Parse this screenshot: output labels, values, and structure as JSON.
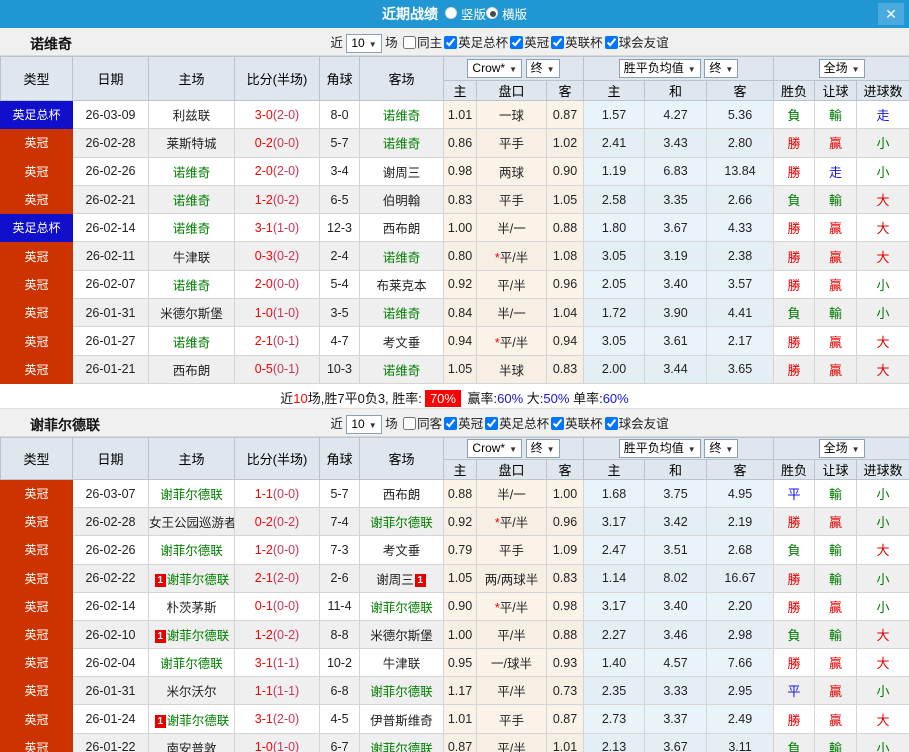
{
  "titlebar": {
    "title": "近期战绩",
    "close": "✕",
    "radios": [
      {
        "label": "竖版",
        "selected": false
      },
      {
        "label": "横版",
        "selected": true
      }
    ]
  },
  "header": {
    "type": "类型",
    "date": "日期",
    "home": "主场",
    "score": "比分(半场)",
    "corner": "角球",
    "away": "客场",
    "bookmaker": "Crow*",
    "final": "终",
    "wdl_avg": "胜平负均值",
    "full": "全场",
    "sub": [
      "主",
      "盘口",
      "客",
      "主",
      "和",
      "客",
      "胜负",
      "让球",
      "进球数"
    ]
  },
  "sections": [
    {
      "team": "诺维奇",
      "filter": {
        "near": "近",
        "count": "10",
        "games": "场",
        "same": "同主",
        "same_checked": false,
        "comps": [
          "英足总杯",
          "英冠",
          "英联杯",
          "球会友谊"
        ]
      },
      "rows": [
        {
          "type": "英足总杯",
          "cup": true,
          "date": "26-03-09",
          "home": "利兹联",
          "score": "3-0",
          "half": "(2-0)",
          "corner": "8-0",
          "away": "诺维奇",
          "away_self": true,
          "h": "1.01",
          "hc": "一球",
          "a": "0.87",
          "eu_h": "1.57",
          "eu_d": "4.27",
          "eu_a": "5.36",
          "res": "負",
          "res_c": "g",
          "let": "輸",
          "let_c": "g",
          "goal": "走",
          "goal_c": "b"
        },
        {
          "type": "英冠",
          "date": "26-02-28",
          "home": "莱斯特城",
          "score": "0-2",
          "half": "(0-0)",
          "corner": "5-7",
          "away": "诺维奇",
          "away_self": true,
          "h": "0.86",
          "hc": "平手",
          "a": "1.02",
          "eu_h": "2.41",
          "eu_d": "3.43",
          "eu_a": "2.80",
          "res": "勝",
          "res_c": "r",
          "let": "贏",
          "let_c": "r",
          "goal": "小",
          "goal_c": "g"
        },
        {
          "type": "英冠",
          "date": "26-02-26",
          "home": "诺维奇",
          "home_self": true,
          "score": "2-0",
          "half": "(2-0)",
          "corner": "3-4",
          "away": "谢周三",
          "h": "0.98",
          "hc": "两球",
          "a": "0.90",
          "eu_h": "1.19",
          "eu_d": "6.83",
          "eu_a": "13.84",
          "res": "勝",
          "res_c": "r",
          "let": "走",
          "let_c": "b",
          "goal": "小",
          "goal_c": "g"
        },
        {
          "type": "英冠",
          "date": "26-02-21",
          "home": "诺维奇",
          "home_self": true,
          "score": "1-2",
          "half": "(0-2)",
          "corner": "6-5",
          "away": "伯明翰",
          "h": "0.83",
          "hc": "平手",
          "a": "1.05",
          "eu_h": "2.58",
          "eu_d": "3.35",
          "eu_a": "2.66",
          "res": "負",
          "res_c": "g",
          "let": "輸",
          "let_c": "g",
          "goal": "大",
          "goal_c": "r"
        },
        {
          "type": "英足总杯",
          "cup": true,
          "date": "26-02-14",
          "home": "诺维奇",
          "home_self": true,
          "score": "3-1",
          "half": "(1-0)",
          "corner": "12-3",
          "away": "西布朗",
          "h": "1.00",
          "hc": "半/一",
          "a": "0.88",
          "eu_h": "1.80",
          "eu_d": "3.67",
          "eu_a": "4.33",
          "res": "勝",
          "res_c": "r",
          "let": "贏",
          "let_c": "r",
          "goal": "大",
          "goal_c": "r"
        },
        {
          "type": "英冠",
          "date": "26-02-11",
          "home": "牛津联",
          "score": "0-3",
          "half": "(0-2)",
          "corner": "2-4",
          "away": "诺维奇",
          "away_self": true,
          "h": "0.80",
          "hc": "*平/半",
          "a": "1.08",
          "eu_h": "3.05",
          "eu_d": "3.19",
          "eu_a": "2.38",
          "res": "勝",
          "res_c": "r",
          "let": "贏",
          "let_c": "r",
          "goal": "大",
          "goal_c": "r"
        },
        {
          "type": "英冠",
          "date": "26-02-07",
          "home": "诺维奇",
          "home_self": true,
          "score": "2-0",
          "half": "(0-0)",
          "corner": "5-4",
          "away": "布莱克本",
          "h": "0.92",
          "hc": "平/半",
          "a": "0.96",
          "eu_h": "2.05",
          "eu_d": "3.40",
          "eu_a": "3.57",
          "res": "勝",
          "res_c": "r",
          "let": "贏",
          "let_c": "r",
          "goal": "小",
          "goal_c": "g"
        },
        {
          "type": "英冠",
          "date": "26-01-31",
          "home": "米德尔斯堡",
          "score": "1-0",
          "half": "(1-0)",
          "corner": "3-5",
          "away": "诺维奇",
          "away_self": true,
          "h": "0.84",
          "hc": "半/一",
          "a": "1.04",
          "eu_h": "1.72",
          "eu_d": "3.90",
          "eu_a": "4.41",
          "res": "負",
          "res_c": "g",
          "let": "輸",
          "let_c": "g",
          "goal": "小",
          "goal_c": "g"
        },
        {
          "type": "英冠",
          "date": "26-01-27",
          "home": "诺维奇",
          "home_self": true,
          "score": "2-1",
          "half": "(0-1)",
          "corner": "4-7",
          "away": "考文垂",
          "h": "0.94",
          "hc": "*平/半",
          "a": "0.94",
          "eu_h": "3.05",
          "eu_d": "3.61",
          "eu_a": "2.17",
          "res": "勝",
          "res_c": "r",
          "let": "贏",
          "let_c": "r",
          "goal": "大",
          "goal_c": "r"
        },
        {
          "type": "英冠",
          "date": "26-01-21",
          "home": "西布朗",
          "score": "0-5",
          "half": "(0-1)",
          "corner": "10-3",
          "away": "诺维奇",
          "away_self": true,
          "h": "1.05",
          "hc": "半球",
          "a": "0.83",
          "eu_h": "2.00",
          "eu_d": "3.44",
          "eu_a": "3.65",
          "res": "勝",
          "res_c": "r",
          "let": "贏",
          "let_c": "r",
          "goal": "大",
          "goal_c": "r"
        }
      ],
      "summary": {
        "near": "近",
        "count": "10",
        "text": "场,胜7平0负3, 胜率:",
        "rate": "70%",
        "stats": [
          {
            "label": "赢率:",
            "value": "60%"
          },
          {
            "label": "大:",
            "value": "50%"
          },
          {
            "label": "单率:",
            "value": "60%"
          }
        ]
      }
    },
    {
      "team": "谢菲尔德联",
      "filter": {
        "near": "近",
        "count": "10",
        "games": "场",
        "same": "同客",
        "same_checked": false,
        "comps": [
          "英冠",
          "英足总杯",
          "英联杯",
          "球会友谊"
        ]
      },
      "rows": [
        {
          "type": "英冠",
          "date": "26-03-07",
          "home": "谢菲尔德联",
          "home_self": true,
          "score": "1-1",
          "half": "(0-0)",
          "corner": "5-7",
          "away": "西布朗",
          "h": "0.88",
          "hc": "半/一",
          "a": "1.00",
          "eu_h": "1.68",
          "eu_d": "3.75",
          "eu_a": "4.95",
          "res": "平",
          "res_c": "b",
          "let": "輸",
          "let_c": "g",
          "goal": "小",
          "goal_c": "g"
        },
        {
          "type": "英冠",
          "date": "26-02-28",
          "home": "女王公园巡游者",
          "score": "0-2",
          "half": "(0-2)",
          "corner": "7-4",
          "away": "谢菲尔德联",
          "away_self": true,
          "h": "0.92",
          "hc": "*平/半",
          "a": "0.96",
          "eu_h": "3.17",
          "eu_d": "3.42",
          "eu_a": "2.19",
          "res": "勝",
          "res_c": "r",
          "let": "贏",
          "let_c": "r",
          "goal": "小",
          "goal_c": "g"
        },
        {
          "type": "英冠",
          "date": "26-02-26",
          "home": "谢菲尔德联",
          "home_self": true,
          "score": "1-2",
          "half": "(0-0)",
          "corner": "7-3",
          "away": "考文垂",
          "h": "0.79",
          "hc": "平手",
          "a": "1.09",
          "eu_h": "2.47",
          "eu_d": "3.51",
          "eu_a": "2.68",
          "res": "負",
          "res_c": "g",
          "let": "輸",
          "let_c": "g",
          "goal": "大",
          "goal_c": "r"
        },
        {
          "type": "英冠",
          "date": "26-02-22",
          "home": "谢菲尔德联",
          "home_self": true,
          "home_card": true,
          "score": "2-1",
          "half": "(2-0)",
          "corner": "2-6",
          "away": "谢周三",
          "away_card": true,
          "h": "1.05",
          "hc": "两/两球半",
          "a": "0.83",
          "eu_h": "1.14",
          "eu_d": "8.02",
          "eu_a": "16.67",
          "res": "勝",
          "res_c": "r",
          "let": "輸",
          "let_c": "g",
          "goal": "小",
          "goal_c": "g"
        },
        {
          "type": "英冠",
          "date": "26-02-14",
          "home": "朴茨茅斯",
          "score": "0-1",
          "half": "(0-0)",
          "corner": "11-4",
          "away": "谢菲尔德联",
          "away_self": true,
          "h": "0.90",
          "hc": "*平/半",
          "a": "0.98",
          "eu_h": "3.17",
          "eu_d": "3.40",
          "eu_a": "2.20",
          "res": "勝",
          "res_c": "r",
          "let": "贏",
          "let_c": "r",
          "goal": "小",
          "goal_c": "g"
        },
        {
          "type": "英冠",
          "date": "26-02-10",
          "home": "谢菲尔德联",
          "home_self": true,
          "home_card": true,
          "score": "1-2",
          "half": "(0-2)",
          "corner": "8-8",
          "away": "米德尔斯堡",
          "h": "1.00",
          "hc": "平/半",
          "a": "0.88",
          "eu_h": "2.27",
          "eu_d": "3.46",
          "eu_a": "2.98",
          "res": "負",
          "res_c": "g",
          "let": "輸",
          "let_c": "g",
          "goal": "大",
          "goal_c": "r"
        },
        {
          "type": "英冠",
          "date": "26-02-04",
          "home": "谢菲尔德联",
          "home_self": true,
          "score": "3-1",
          "half": "(1-1)",
          "corner": "10-2",
          "away": "牛津联",
          "h": "0.95",
          "hc": "一/球半",
          "a": "0.93",
          "eu_h": "1.40",
          "eu_d": "4.57",
          "eu_a": "7.66",
          "res": "勝",
          "res_c": "r",
          "let": "贏",
          "let_c": "r",
          "goal": "大",
          "goal_c": "r"
        },
        {
          "type": "英冠",
          "date": "26-01-31",
          "home": "米尔沃尔",
          "score": "1-1",
          "half": "(1-1)",
          "corner": "6-8",
          "away": "谢菲尔德联",
          "away_self": true,
          "h": "1.17",
          "hc": "平/半",
          "a": "0.73",
          "eu_h": "2.35",
          "eu_d": "3.33",
          "eu_a": "2.95",
          "res": "平",
          "res_c": "b",
          "let": "贏",
          "let_c": "r",
          "goal": "小",
          "goal_c": "g"
        },
        {
          "type": "英冠",
          "date": "26-01-24",
          "home": "谢菲尔德联",
          "home_self": true,
          "home_card": true,
          "score": "3-1",
          "half": "(2-0)",
          "corner": "4-5",
          "away": "伊普斯维奇",
          "h": "1.01",
          "hc": "平手",
          "a": "0.87",
          "eu_h": "2.73",
          "eu_d": "3.37",
          "eu_a": "2.49",
          "res": "勝",
          "res_c": "r",
          "let": "贏",
          "let_c": "r",
          "goal": "大",
          "goal_c": "r"
        },
        {
          "type": "英冠",
          "date": "26-01-22",
          "home": "南安普敦",
          "score": "1-0",
          "half": "(1-0)",
          "corner": "6-7",
          "away": "谢菲尔德联",
          "away_self": true,
          "h": "0.87",
          "hc": "平/半",
          "a": "1.01",
          "eu_h": "2.13",
          "eu_d": "3.67",
          "eu_a": "3.11",
          "res": "負",
          "res_c": "g",
          "let": "輸",
          "let_c": "g",
          "goal": "小",
          "goal_c": "g"
        }
      ]
    }
  ]
}
